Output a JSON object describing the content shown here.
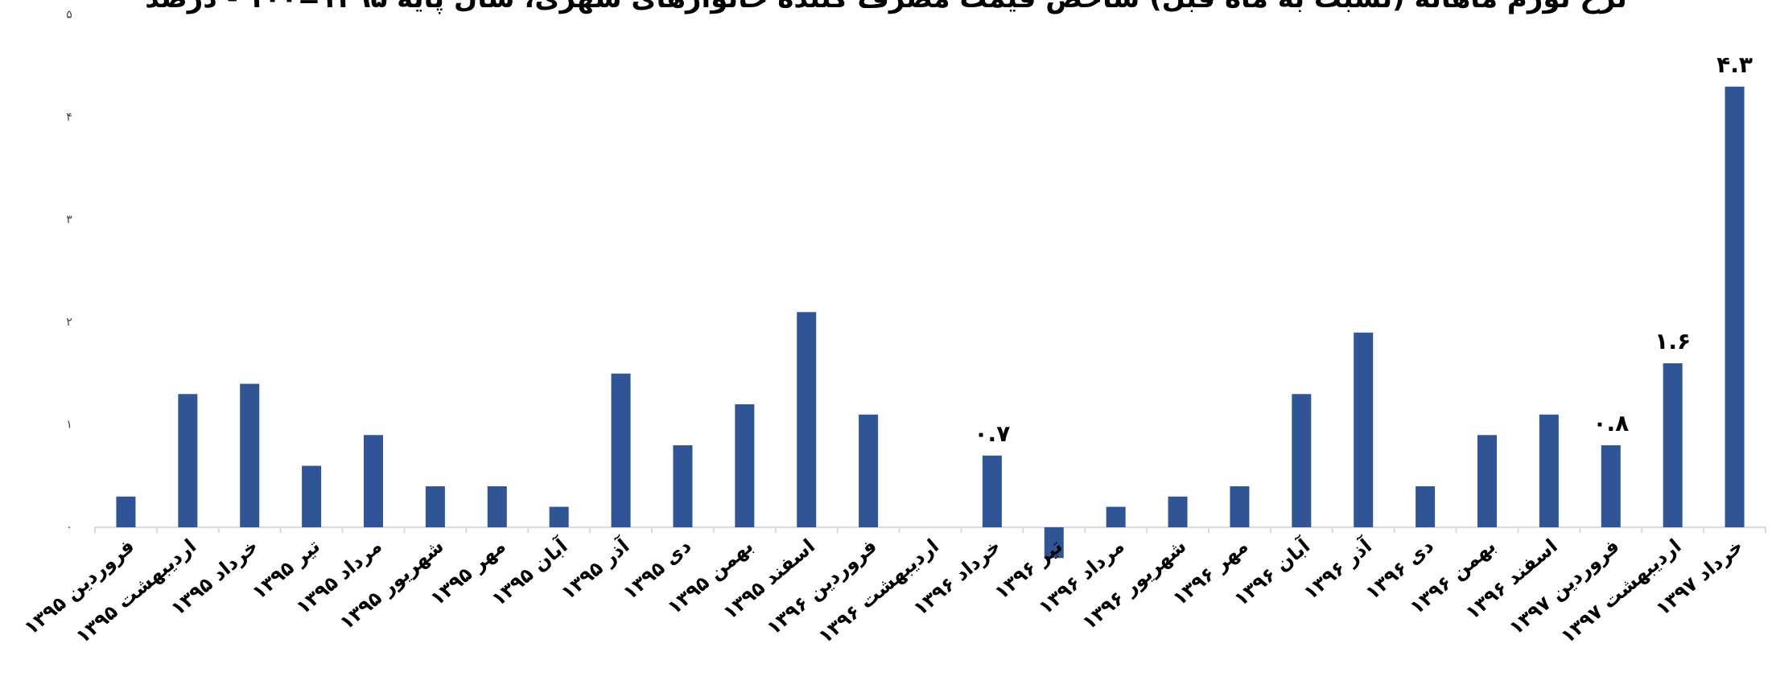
{
  "chart_data": {
    "type": "bar",
    "title": "نرخ تورم ماهانه (نسبت به ماه قبل) شاخص قیمت مصرف کننده خانوارهای شهری، سال پایه ۱۳۹۵=۱۰۰ - درصد",
    "xlabel": "",
    "ylabel": "",
    "ylim": [
      -0.3,
      5
    ],
    "yticks": [
      0,
      1,
      2,
      3,
      4,
      5
    ],
    "ytick_labels": [
      "۰",
      "۱",
      "۲",
      "۳",
      "۴",
      "۵"
    ],
    "grid": false,
    "legend": "none",
    "bar_color": "#2F5597",
    "categories": [
      "فروردین ۱۳۹۵",
      "اردیبهشت ۱۳۹۵",
      "خرداد ۱۳۹۵",
      "تیر ۱۳۹۵",
      "مرداد ۱۳۹۵",
      "شهریور ۱۳۹۵",
      "مهر ۱۳۹۵",
      "آبان ۱۳۹۵",
      "آذر ۱۳۹۵",
      "دی ۱۳۹۵",
      "بهمن ۱۳۹۵",
      "اسفند ۱۳۹۵",
      "فروردین ۱۳۹۶",
      "اردیبهشت ۱۳۹۶",
      "خرداد ۱۳۹۶",
      "تیر ۱۳۹۶",
      "مرداد ۱۳۹۶",
      "شهریور ۱۳۹۶",
      "مهر ۱۳۹۶",
      "آبان ۱۳۹۶",
      "آذر ۱۳۹۶",
      "دی ۱۳۹۶",
      "بهمن ۱۳۹۶",
      "اسفند ۱۳۹۶",
      "فروردین ۱۳۹۷",
      "اردیبهشت ۱۳۹۷",
      "خرداد ۱۳۹۷"
    ],
    "values": [
      0.3,
      1.3,
      1.4,
      0.6,
      0.9,
      0.4,
      0.4,
      0.2,
      1.5,
      0.8,
      1.2,
      2.1,
      1.1,
      0.0,
      0.7,
      -0.3,
      0.2,
      0.3,
      0.4,
      1.3,
      1.9,
      0.4,
      0.9,
      1.1,
      0.8,
      1.6,
      4.3
    ],
    "data_labels": [
      {
        "index": 14,
        "text": "۰.۷"
      },
      {
        "index": 24,
        "text": "۰.۸"
      },
      {
        "index": 25,
        "text": "۱.۶"
      },
      {
        "index": 26,
        "text": "۴.۳"
      }
    ]
  }
}
